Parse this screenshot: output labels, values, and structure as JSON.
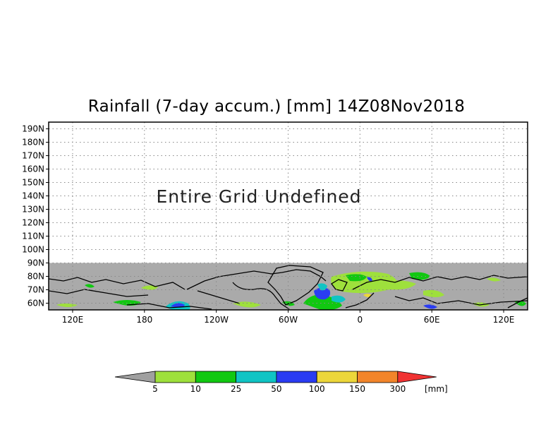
{
  "title": "Rainfall (7-day accum.) [mm] 14Z08Nov2018",
  "notice": "Entire Grid Undefined",
  "map": {
    "lat_labels": [
      "190N",
      "180N",
      "170N",
      "160N",
      "150N",
      "140N",
      "130N",
      "120N",
      "110N",
      "100N",
      "90N",
      "80N",
      "70N",
      "60N"
    ],
    "lon_labels": [
      "120E",
      "180",
      "120W",
      "60W",
      "0",
      "60E",
      "120E"
    ],
    "lon_values": [
      120,
      180,
      240,
      300,
      360,
      420,
      480
    ],
    "lon_range": [
      100,
      500
    ],
    "lat_range": [
      55,
      195
    ],
    "defined_lat_max": 90,
    "grid": "dotted",
    "colors": {
      "undefined": "#aaaaaa",
      "coast": "#000000"
    }
  },
  "colorbar": {
    "unit": "[mm]",
    "ticks": [
      "5",
      "10",
      "25",
      "50",
      "100",
      "150",
      "300"
    ],
    "bins": [
      {
        "color": "#a0a0a0"
      },
      {
        "color": "#9ee03c"
      },
      {
        "color": "#11c811"
      },
      {
        "color": "#10c4c4"
      },
      {
        "color": "#2a3cf2"
      },
      {
        "color": "#ecd63a"
      },
      {
        "color": "#f2852a"
      },
      {
        "color": "#f03232"
      }
    ]
  }
}
